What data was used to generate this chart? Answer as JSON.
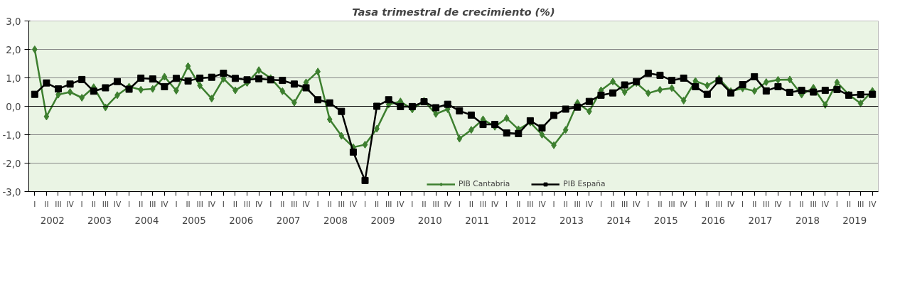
{
  "chart_data": {
    "type": "line",
    "title": "Tasa trimestral de crecimiento (%)",
    "categories": [
      "I",
      "II",
      "III",
      "IV",
      "I",
      "II",
      "III",
      "IV",
      "I",
      "II",
      "III",
      "IV",
      "I",
      "II",
      "III",
      "IV",
      "I",
      "II",
      "III",
      "IV",
      "I",
      "II",
      "III",
      "IV",
      "I",
      "II",
      "III",
      "IV",
      "I",
      "II",
      "III",
      "IV",
      "I",
      "II",
      "III",
      "IV",
      "I",
      "II",
      "III",
      "IV",
      "I",
      "II",
      "III",
      "IV",
      "I",
      "II",
      "III",
      "IV",
      "I",
      "II",
      "III",
      "IV",
      "I",
      "II",
      "III",
      "IV",
      "I",
      "II",
      "III",
      "IV",
      "I",
      "II",
      "III",
      "IV",
      "I",
      "II",
      "III",
      "IV",
      "I",
      "II",
      "III",
      "IV"
    ],
    "annotations": [
      "2002",
      "2003",
      "2004",
      "2005",
      "2006",
      "2007",
      "2008",
      "2009",
      "2010",
      "2011",
      "2012",
      "2013",
      "2014",
      "2015",
      "2016",
      "2017",
      "2018",
      "2019"
    ],
    "series": [
      {
        "name": "PIB Cantabria",
        "color": "#3d7f2f",
        "marker": "diamond",
        "values": [
          2.0,
          -0.36,
          0.41,
          0.5,
          0.3,
          0.67,
          -0.04,
          0.39,
          0.69,
          0.58,
          0.61,
          1.04,
          0.55,
          1.41,
          0.73,
          0.27,
          0.97,
          0.56,
          0.82,
          1.27,
          0.99,
          0.53,
          0.13,
          0.84,
          1.22,
          -0.46,
          -1.04,
          -1.44,
          -1.35,
          -0.79,
          0.06,
          0.17,
          -0.11,
          0.19,
          -0.27,
          -0.1,
          -1.14,
          -0.83,
          -0.46,
          -0.72,
          -0.42,
          -0.81,
          -0.57,
          -1.0,
          -1.37,
          -0.83,
          0.12,
          -0.18,
          0.56,
          0.87,
          0.5,
          0.82,
          0.46,
          0.58,
          0.64,
          0.2,
          0.89,
          0.73,
          0.97,
          0.53,
          0.63,
          0.54,
          0.85,
          0.93,
          0.94,
          0.41,
          0.65,
          0.05,
          0.84,
          0.41,
          0.1,
          0.54
        ]
      },
      {
        "name": "PIB España",
        "color": "#000000",
        "marker": "square",
        "values": [
          0.42,
          0.82,
          0.61,
          0.78,
          0.94,
          0.53,
          0.65,
          0.87,
          0.6,
          0.99,
          0.96,
          0.69,
          0.98,
          0.89,
          0.99,
          1.02,
          1.16,
          0.98,
          0.93,
          0.97,
          0.93,
          0.91,
          0.78,
          0.65,
          0.23,
          0.12,
          -0.18,
          -1.61,
          -2.61,
          0.0,
          0.23,
          -0.01,
          -0.01,
          0.16,
          -0.05,
          0.07,
          -0.16,
          -0.31,
          -0.64,
          -0.64,
          -0.94,
          -0.96,
          -0.51,
          -0.76,
          -0.32,
          -0.1,
          -0.03,
          0.17,
          0.39,
          0.47,
          0.75,
          0.87,
          1.16,
          1.09,
          0.91,
          0.99,
          0.69,
          0.42,
          0.9,
          0.47,
          0.76,
          1.04,
          0.54,
          0.69,
          0.49,
          0.56,
          0.5,
          0.56,
          0.59,
          0.39,
          0.41,
          0.42
        ]
      }
    ],
    "ylim": [
      -3,
      3
    ],
    "yticks": [
      {
        "value": -3,
        "label": "-3,0"
      },
      {
        "value": -2,
        "label": "-2,0"
      },
      {
        "value": -1,
        "label": "-1,0"
      },
      {
        "value": 0,
        "label": "0,0"
      },
      {
        "value": 1,
        "label": "1,0"
      },
      {
        "value": 2,
        "label": "2,0"
      },
      {
        "value": 3,
        "label": "3,0"
      }
    ],
    "grid": "y",
    "legend": "bottom",
    "line_style": "solid"
  }
}
